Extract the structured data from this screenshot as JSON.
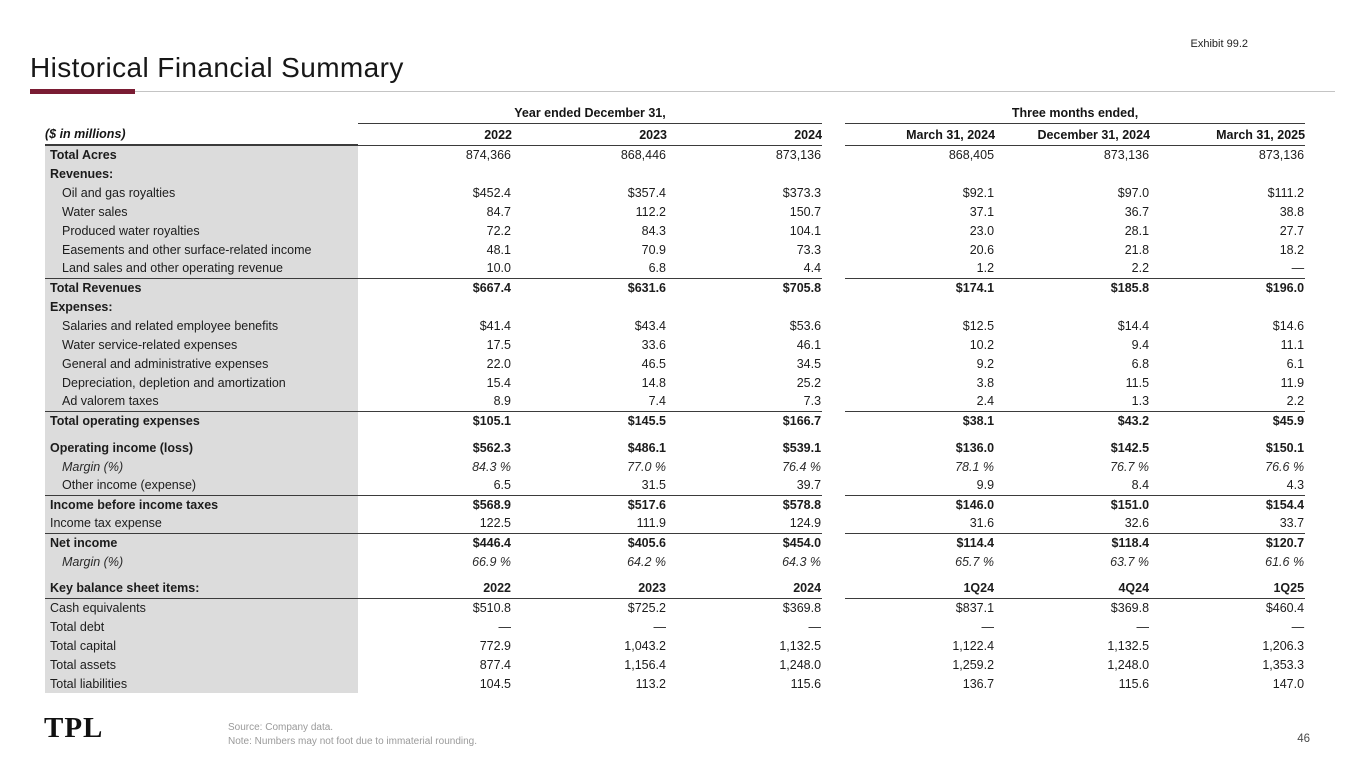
{
  "page": {
    "exhibit_label": "Exhibit 99.2",
    "title": "Historical Financial Summary",
    "logo_text": "TPL",
    "source_note": "Source: Company data.",
    "rounding_note": "Note: Numbers may not foot due to immaterial rounding.",
    "page_number": "46"
  },
  "colors": {
    "accent_maroon": "#7a1c33",
    "label_column_bg": "#dcdcdc",
    "rule_dark": "#3b3b3b"
  },
  "table": {
    "units_label": "($ in millions)",
    "group_headers": [
      {
        "label": "Year ended December 31,"
      },
      {
        "label": "Three months ended,"
      }
    ],
    "column_headers": [
      "2022",
      "2023",
      "2024",
      "March 31, 2024",
      "December 31, 2024",
      "March 31, 2025"
    ],
    "rows": [
      {
        "label": "Total Acres",
        "bold": true,
        "values": [
          "874,366",
          "868,446",
          "873,136",
          "868,405",
          "873,136",
          "873,136"
        ]
      },
      {
        "label": "Revenues:",
        "bold": true,
        "values": null
      },
      {
        "label": "Oil and gas royalties",
        "indent": true,
        "values": [
          "$452.4",
          "$357.4",
          "$373.3",
          "$92.1",
          "$97.0",
          "$111.2"
        ]
      },
      {
        "label": "Water sales",
        "indent": true,
        "values": [
          "84.7",
          "112.2",
          "150.7",
          "37.1",
          "36.7",
          "38.8"
        ]
      },
      {
        "label": "Produced water royalties",
        "indent": true,
        "values": [
          "72.2",
          "84.3",
          "104.1",
          "23.0",
          "28.1",
          "27.7"
        ]
      },
      {
        "label": "Easements and other surface-related income",
        "indent": true,
        "values": [
          "48.1",
          "70.9",
          "73.3",
          "20.6",
          "21.8",
          "18.2"
        ]
      },
      {
        "label": "Land sales and other operating revenue",
        "indent": true,
        "values": [
          "10.0",
          "6.8",
          "4.4",
          "1.2",
          "2.2",
          "—"
        ]
      },
      {
        "label": "Total Revenues",
        "bold": true,
        "values_bold": true,
        "border_top": true,
        "values": [
          "$667.4",
          "$631.6",
          "$705.8",
          "$174.1",
          "$185.8",
          "$196.0"
        ]
      },
      {
        "label": "Expenses:",
        "bold": true,
        "values": null
      },
      {
        "label": "Salaries and related employee benefits",
        "indent": true,
        "values": [
          "$41.4",
          "$43.4",
          "$53.6",
          "$12.5",
          "$14.4",
          "$14.6"
        ]
      },
      {
        "label": "Water service-related expenses",
        "indent": true,
        "values": [
          "17.5",
          "33.6",
          "46.1",
          "10.2",
          "9.4",
          "11.1"
        ]
      },
      {
        "label": "General and administrative expenses",
        "indent": true,
        "values": [
          "22.0",
          "46.5",
          "34.5",
          "9.2",
          "6.8",
          "6.1"
        ]
      },
      {
        "label": "Depreciation, depletion and amortization",
        "indent": true,
        "values": [
          "15.4",
          "14.8",
          "25.2",
          "3.8",
          "11.5",
          "11.9"
        ]
      },
      {
        "label": "Ad valorem taxes",
        "indent": true,
        "values": [
          "8.9",
          "7.4",
          "7.3",
          "2.4",
          "1.3",
          "2.2"
        ]
      },
      {
        "label": "Total operating expenses",
        "bold": true,
        "values_bold": true,
        "border_top": true,
        "values": [
          "$105.1",
          "$145.5",
          "$166.7",
          "$38.1",
          "$43.2",
          "$45.9"
        ]
      },
      {
        "label": "Operating income (loss)",
        "bold": true,
        "values_bold": true,
        "gap_before": true,
        "values": [
          "$562.3",
          "$486.1",
          "$539.1",
          "$136.0",
          "$142.5",
          "$150.1"
        ]
      },
      {
        "label": "Margin (%)",
        "indent": true,
        "italic": true,
        "values": [
          "84.3 %",
          "77.0 %",
          "76.4 %",
          "78.1 %",
          "76.7 %",
          "76.6 %"
        ]
      },
      {
        "label": "Other income (expense)",
        "indent": true,
        "values": [
          "6.5",
          "31.5",
          "39.7",
          "9.9",
          "8.4",
          "4.3"
        ]
      },
      {
        "label": "Income before income taxes",
        "bold": true,
        "values_bold": true,
        "border_top": true,
        "values": [
          "$568.9",
          "$517.6",
          "$578.8",
          "$146.0",
          "$151.0",
          "$154.4"
        ]
      },
      {
        "label": "Income tax expense",
        "values": [
          "122.5",
          "111.9",
          "124.9",
          "31.6",
          "32.6",
          "33.7"
        ]
      },
      {
        "label": "Net income",
        "bold": true,
        "values_bold": true,
        "border_top": true,
        "values": [
          "$446.4",
          "$405.6",
          "$454.0",
          "$114.4",
          "$118.4",
          "$120.7"
        ]
      },
      {
        "label": "Margin (%)",
        "indent": true,
        "italic": true,
        "values": [
          "66.9 %",
          "64.2 %",
          "64.3 %",
          "65.7 %",
          "63.7 %",
          "61.6 %"
        ]
      },
      {
        "label": "Key balance sheet items:",
        "bold": true,
        "values_bold": true,
        "gap_before": true,
        "border_bottom": true,
        "values": [
          "2022",
          "2023",
          "2024",
          "1Q24",
          "4Q24",
          "1Q25"
        ]
      },
      {
        "label": "Cash equivalents",
        "values": [
          "$510.8",
          "$725.2",
          "$369.8",
          "$837.1",
          "$369.8",
          "$460.4"
        ]
      },
      {
        "label": "Total debt",
        "values": [
          "—",
          "—",
          "—",
          "—",
          "—",
          "—"
        ]
      },
      {
        "label": "Total capital",
        "values": [
          "772.9",
          "1,043.2",
          "1,132.5",
          "1,122.4",
          "1,132.5",
          "1,206.3"
        ]
      },
      {
        "label": "Total assets",
        "values": [
          "877.4",
          "1,156.4",
          "1,248.0",
          "1,259.2",
          "1,248.0",
          "1,353.3"
        ]
      },
      {
        "label": "Total liabilities",
        "values": [
          "104.5",
          "113.2",
          "115.6",
          "136.7",
          "115.6",
          "147.0"
        ]
      }
    ]
  }
}
